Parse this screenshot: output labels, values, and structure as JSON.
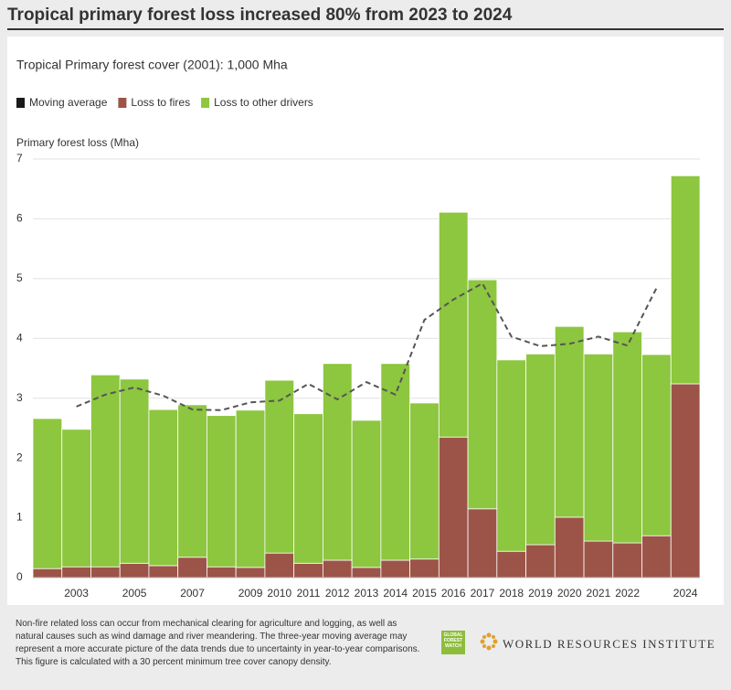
{
  "chart_data": {
    "type": "stacked_bar",
    "title": "Tropical primary forest loss increased 80% from 2023 to 2024",
    "subtitle": "Tropical Primary forest cover (2001): 1,000 Mha",
    "y_label": "Primary forest loss (Mha)",
    "categories": [
      null,
      "2003",
      null,
      "2005",
      null,
      "2007",
      null,
      "2009",
      "2010",
      "2011",
      "2012",
      "2013",
      "2014",
      "2015",
      "2016",
      "2017",
      "2018",
      "2019",
      "2020",
      "2021",
      "2022",
      null,
      "2024"
    ],
    "series": [
      {
        "name": "Moving average",
        "color": "#1a1a1a",
        "type": "line",
        "values": [
          null,
          2.86,
          3.06,
          3.18,
          3.04,
          2.81,
          2.8,
          2.93,
          2.96,
          3.24,
          2.98,
          3.27,
          3.06,
          4.31,
          4.65,
          4.92,
          4.03,
          3.87,
          3.91,
          4.03,
          3.88,
          4.84,
          null
        ]
      },
      {
        "name": "Loss to fires",
        "color": "#9c5448",
        "type": "bar",
        "values": [
          0.15,
          0.18,
          0.18,
          0.24,
          0.2,
          0.34,
          0.18,
          0.17,
          0.41,
          0.24,
          0.29,
          0.17,
          0.29,
          0.31,
          2.35,
          1.15,
          0.44,
          0.55,
          1.01,
          0.61,
          0.58,
          0.7,
          3.24
        ]
      },
      {
        "name": "Loss to other drivers",
        "color": "#8dc63f",
        "type": "bar",
        "values": [
          2.51,
          2.3,
          3.21,
          3.08,
          2.61,
          2.55,
          2.53,
          2.63,
          2.89,
          2.5,
          3.29,
          2.46,
          3.29,
          2.61,
          3.76,
          3.83,
          3.2,
          3.19,
          3.19,
          3.13,
          3.53,
          3.03,
          3.48
        ]
      }
    ],
    "ylim": [
      0,
      7
    ],
    "yticks": [
      0,
      1,
      2,
      3,
      4,
      5,
      6,
      7
    ],
    "grid": true,
    "footnote": "Non-fire related loss can occur from mechanical clearing for agriculture and logging, as well as natural causes such as wind damage and river meandering. The three-year moving average may represent a more accurate picture of the data trends due to uncertainty in year-to-year comparisons. This figure is calculated with a 30 percent minimum tree cover canopy density.",
    "logos": [
      "GLOBAL FOREST WATCH",
      "WORLD RESOURCES INSTITUTE"
    ]
  }
}
